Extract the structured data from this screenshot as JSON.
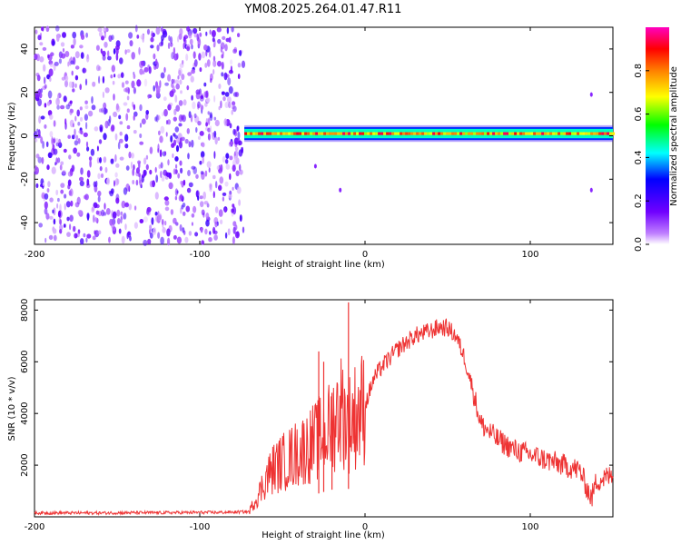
{
  "title": "YM08.2025.264.01.47.R11",
  "chart_data": [
    {
      "type": "heatmap",
      "xlabel": "Height of straight line (km)",
      "ylabel": "Frequency (Hz)",
      "xlim": [
        -200,
        150
      ],
      "ylim": [
        -50,
        50
      ],
      "x_ticks": [
        -200,
        -100,
        0,
        100
      ],
      "y_ticks": [
        -40,
        -20,
        0,
        20,
        40
      ],
      "colorbar": {
        "label": "Normalized spectral amplitude",
        "range": [
          0,
          1
        ],
        "ticks": [
          0.0,
          0.2,
          0.4,
          0.6,
          0.8
        ],
        "colors": [
          "#ffffff",
          "#8000ff",
          "#0000ff",
          "#00ffff",
          "#00ff00",
          "#ffff00",
          "#ff0000",
          "#ff00c0"
        ]
      },
      "regions": [
        {
          "name": "noise",
          "x_range": [
            -200,
            -73
          ],
          "freq_range": [
            -50,
            50
          ],
          "amplitude": 0.15
        },
        {
          "name": "signal-band",
          "x_range": [
            -73,
            150
          ],
          "freq_center": 1,
          "freq_halfwidth": 3,
          "amplitude": 0.9
        }
      ],
      "artifacts": [
        {
          "x": -30,
          "freq": -14
        },
        {
          "x": -15,
          "freq": -25
        },
        {
          "x": 137,
          "freq": -25
        },
        {
          "x": 137,
          "freq": 19
        }
      ]
    },
    {
      "type": "line",
      "xlabel": "Height of straight line (km)",
      "ylabel": "SNR (10 * v/v)",
      "xlim": [
        -200,
        150
      ],
      "ylim": [
        0,
        8400
      ],
      "x_ticks": [
        -200,
        -100,
        0,
        100
      ],
      "y_ticks": [
        2000,
        4000,
        6000,
        8000
      ],
      "color": "#ee3333",
      "series": [
        {
          "name": "SNR",
          "x": [
            -200,
            -180,
            -160,
            -140,
            -120,
            -100,
            -90,
            -80,
            -75,
            -70,
            -67,
            -64,
            -60,
            -55,
            -50,
            -45,
            -40,
            -35,
            -30,
            -25,
            -20,
            -15,
            -12,
            -10,
            -5,
            0,
            5,
            10,
            20,
            30,
            40,
            45,
            50,
            55,
            60,
            65,
            70,
            80,
            90,
            100,
            110,
            120,
            130,
            137,
            140,
            150
          ],
          "y": [
            150,
            150,
            150,
            160,
            160,
            170,
            170,
            180,
            190,
            200,
            600,
            900,
            1500,
            1900,
            2100,
            2300,
            2500,
            2700,
            2900,
            3200,
            3500,
            4300,
            3800,
            3600,
            4000,
            4300,
            5300,
            5800,
            6500,
            7000,
            7200,
            7350,
            7300,
            7000,
            6200,
            5000,
            3600,
            3000,
            2600,
            2400,
            2200,
            2000,
            1800,
            700,
            1400,
            1600
          ]
        }
      ],
      "spikes": [
        {
          "x": -28,
          "y": 6400
        },
        {
          "x": -25,
          "y": 6000
        },
        {
          "x": -20,
          "y": 4800
        },
        {
          "x": -10,
          "y": 8300
        }
      ]
    }
  ]
}
